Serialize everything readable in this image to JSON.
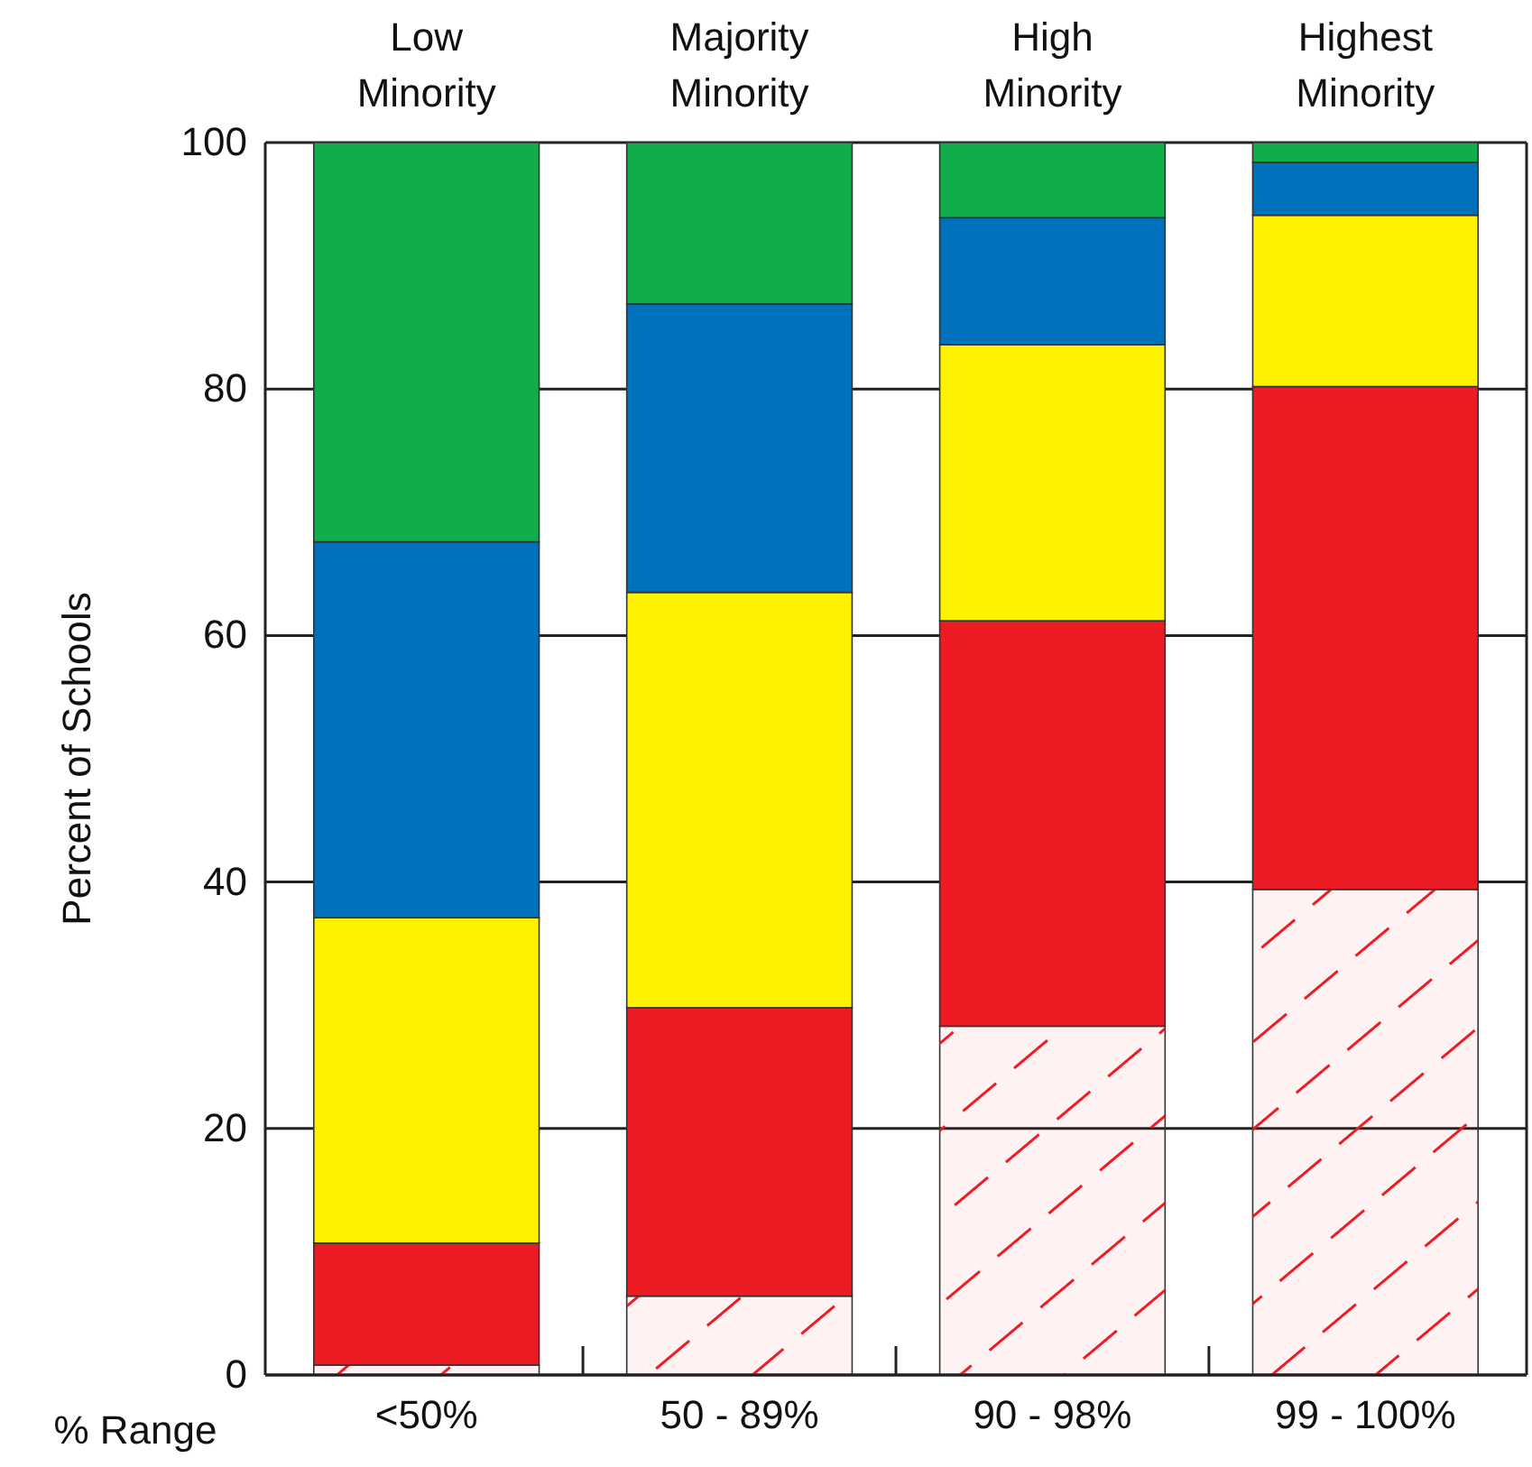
{
  "chart_data": {
    "type": "bar",
    "stacked": true,
    "ylabel": "Percent of Schools",
    "xlabel": "% Range",
    "categories": [
      "<50%",
      "50 - 89%",
      "90 - 98%",
      "99 - 100%"
    ],
    "series": [
      {
        "color": "#ed1c24",
        "values": [
          0.8,
          6.4,
          28.3,
          39.4
        ]
      },
      {
        "color": "#ed1c24",
        "values": [
          9.9,
          23.4,
          32.9,
          40.8
        ]
      },
      {
        "color": "#fff200",
        "values": [
          26.4,
          33.7,
          22.4,
          13.9
        ]
      },
      {
        "color": "#0071bc",
        "values": [
          30.5,
          23.4,
          10.3,
          4.3
        ]
      },
      {
        "color": "#10ae4a",
        "values": [
          32.4,
          13.1,
          6.1,
          1.6
        ]
      }
    ],
    "annotations": [
      "Low Minority",
      "Majority Minority",
      "High Minority",
      "Highest Minority"
    ],
    "ylim": [
      0,
      100
    ],
    "yticks": [
      0,
      20,
      40,
      60,
      80,
      100
    ],
    "grid": "y"
  }
}
